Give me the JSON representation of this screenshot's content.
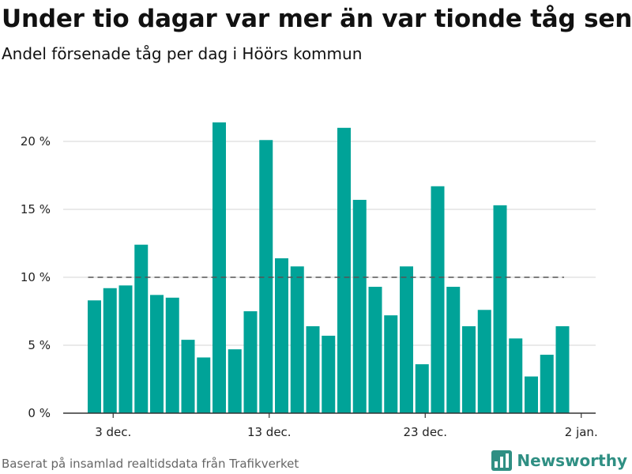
{
  "header": {
    "title": "Under tio dagar var mer än var tionde tåg sent",
    "subtitle": "Andel försenade tåg per dag i Höörs kommun"
  },
  "footer": {
    "source": "Baserat på insamlad realtidsdata från Trafikverket",
    "brand": "Newsworthy"
  },
  "colors": {
    "bar": "#00a398",
    "grid": "#dddddd",
    "reference_line": "#555555",
    "brand": "#2f8f83"
  },
  "chart_data": {
    "type": "bar",
    "title": "Under tio dagar var mer än var tionde tåg sent",
    "subtitle": "Andel försenade tåg per dag i Höörs kommun",
    "xlabel": "",
    "ylabel": "",
    "ylim": [
      0,
      23
    ],
    "yticks": [
      0,
      5,
      10,
      15,
      20
    ],
    "ytick_labels": [
      "0 %",
      "5 %",
      "10 %",
      "15 %",
      "20 %"
    ],
    "grid": true,
    "reference_line": 10,
    "x": [
      "2023-12-02",
      "2023-12-03",
      "2023-12-04",
      "2023-12-05",
      "2023-12-06",
      "2023-12-07",
      "2023-12-08",
      "2023-12-09",
      "2023-12-10",
      "2023-12-11",
      "2023-12-12",
      "2023-12-13",
      "2023-12-14",
      "2023-12-15",
      "2023-12-16",
      "2023-12-17",
      "2023-12-18",
      "2023-12-19",
      "2023-12-20",
      "2023-12-21",
      "2023-12-22",
      "2023-12-23",
      "2023-12-24",
      "2023-12-25",
      "2023-12-26",
      "2023-12-27",
      "2023-12-28",
      "2023-12-29",
      "2023-12-30",
      "2023-12-31",
      "2024-01-01"
    ],
    "values": [
      8.3,
      9.2,
      9.4,
      12.4,
      8.7,
      8.5,
      5.4,
      4.1,
      21.4,
      4.7,
      7.5,
      20.1,
      11.4,
      10.8,
      6.4,
      5.7,
      21.0,
      15.7,
      9.3,
      7.2,
      10.8,
      3.6,
      16.7,
      9.3,
      6.4,
      7.6,
      15.3,
      5.5,
      2.7,
      4.3,
      6.4
    ],
    "xtick_dates": [
      "2023-12-03",
      "2023-12-13",
      "2023-12-23",
      "2024-01-02"
    ],
    "xtick_labels": [
      "3 dec.",
      "13 dec.",
      "23 dec.",
      "2 jan."
    ]
  }
}
